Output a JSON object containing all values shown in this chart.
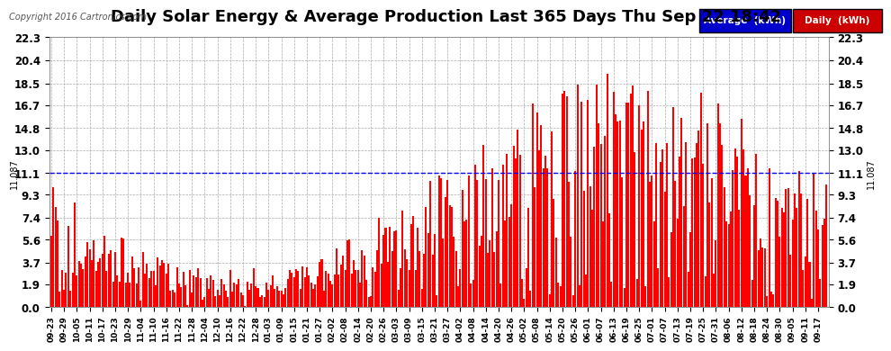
{
  "title": "Daily Solar Energy & Average Production Last 365 Days Thu Sep 22 18:42",
  "copyright": "Copyright 2016 Cartronics.com",
  "average_value": 11.087,
  "average_label": "11.087",
  "ylim": [
    0.0,
    22.3
  ],
  "yticks": [
    0.0,
    1.9,
    3.7,
    5.6,
    7.4,
    9.3,
    11.1,
    13.0,
    14.8,
    16.7,
    18.5,
    20.4,
    22.3
  ],
  "bar_color": "#ff0000",
  "average_line_color": "#0000ff",
  "background_color": "#ffffff",
  "plot_bg_color": "#ffffff",
  "grid_color": "#aaaaaa",
  "legend_avg_bg": "#0000cc",
  "legend_daily_bg": "#cc0000",
  "legend_avg_text": "Average  (kWh)",
  "legend_daily_text": "Daily  (kWh)",
  "title_fontsize": 13,
  "tick_fontsize": 8.5,
  "num_days": 365,
  "seed": 42,
  "x_date_labels": [
    "09-23",
    "09-29",
    "10-05",
    "10-11",
    "10-17",
    "10-23",
    "10-29",
    "11-04",
    "11-10",
    "11-16",
    "11-22",
    "11-28",
    "12-04",
    "12-10",
    "12-16",
    "12-22",
    "12-28",
    "01-03",
    "01-09",
    "01-15",
    "01-21",
    "01-27",
    "02-02",
    "02-08",
    "02-14",
    "02-20",
    "02-26",
    "03-03",
    "03-09",
    "03-15",
    "03-21",
    "03-27",
    "04-02",
    "04-08",
    "04-14",
    "04-20",
    "04-26",
    "05-02",
    "05-08",
    "05-14",
    "05-20",
    "05-26",
    "06-01",
    "06-07",
    "06-13",
    "06-19",
    "06-25",
    "07-01",
    "07-07",
    "07-13",
    "07-19",
    "07-25",
    "07-31",
    "08-06",
    "08-12",
    "08-18",
    "08-24",
    "08-30",
    "09-05",
    "09-11",
    "09-17"
  ]
}
